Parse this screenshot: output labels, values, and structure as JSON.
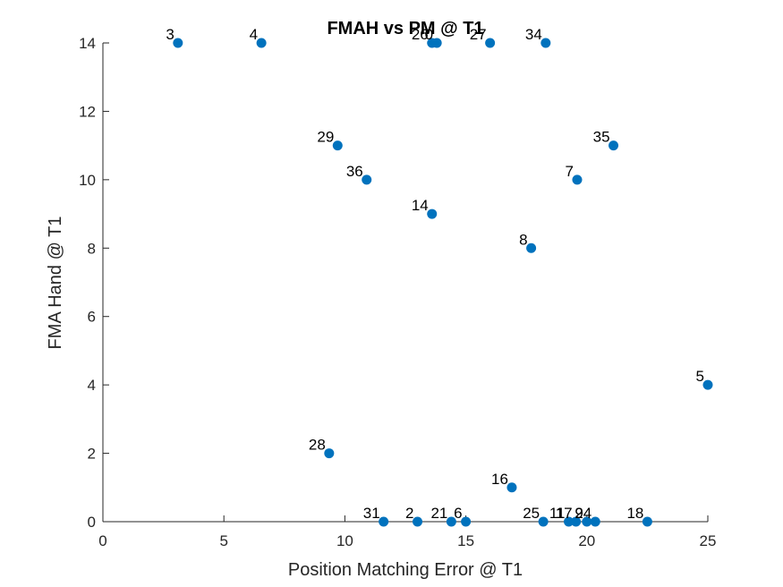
{
  "chart_data": {
    "type": "scatter",
    "title": "FMAH vs PM @ T1",
    "xlabel": "Position Matching Error @ T1",
    "ylabel": "FMA Hand @ T1",
    "xlim": [
      0,
      25
    ],
    "ylim": [
      0,
      14
    ],
    "x_ticks": [
      0,
      5,
      10,
      15,
      20,
      25
    ],
    "y_ticks": [
      0,
      2,
      4,
      6,
      8,
      10,
      12,
      14
    ],
    "grid": false,
    "marker_color": "#0072bd",
    "points": [
      {
        "label": "3",
        "x": 3.1,
        "y": 14
      },
      {
        "label": "4",
        "x": 6.55,
        "y": 14
      },
      {
        "label": "26",
        "x": 13.6,
        "y": 14
      },
      {
        "label": "0",
        "x": 13.8,
        "y": 14
      },
      {
        "label": "27",
        "x": 16.0,
        "y": 14
      },
      {
        "label": "34",
        "x": 18.3,
        "y": 14
      },
      {
        "label": "29",
        "x": 9.7,
        "y": 11
      },
      {
        "label": "35",
        "x": 21.1,
        "y": 11
      },
      {
        "label": "36",
        "x": 10.9,
        "y": 10
      },
      {
        "label": "7",
        "x": 19.6,
        "y": 10
      },
      {
        "label": "14",
        "x": 13.6,
        "y": 9
      },
      {
        "label": "8",
        "x": 17.7,
        "y": 8
      },
      {
        "label": "5",
        "x": 25.0,
        "y": 4
      },
      {
        "label": "28",
        "x": 9.35,
        "y": 2
      },
      {
        "label": "16",
        "x": 16.9,
        "y": 1
      },
      {
        "label": "31",
        "x": 11.6,
        "y": 0
      },
      {
        "label": "2",
        "x": 13.0,
        "y": 0
      },
      {
        "label": "21",
        "x": 14.4,
        "y": 0
      },
      {
        "label": "6",
        "x": 15.0,
        "y": 0
      },
      {
        "label": "25",
        "x": 18.2,
        "y": 0
      },
      {
        "label": "11",
        "x": 19.25,
        "y": 0
      },
      {
        "label": "17",
        "x": 19.55,
        "y": 0
      },
      {
        "label": "9",
        "x": 20.0,
        "y": 0
      },
      {
        "label": "24",
        "x": 20.35,
        "y": 0
      },
      {
        "label": "18",
        "x": 22.5,
        "y": 0
      }
    ]
  }
}
